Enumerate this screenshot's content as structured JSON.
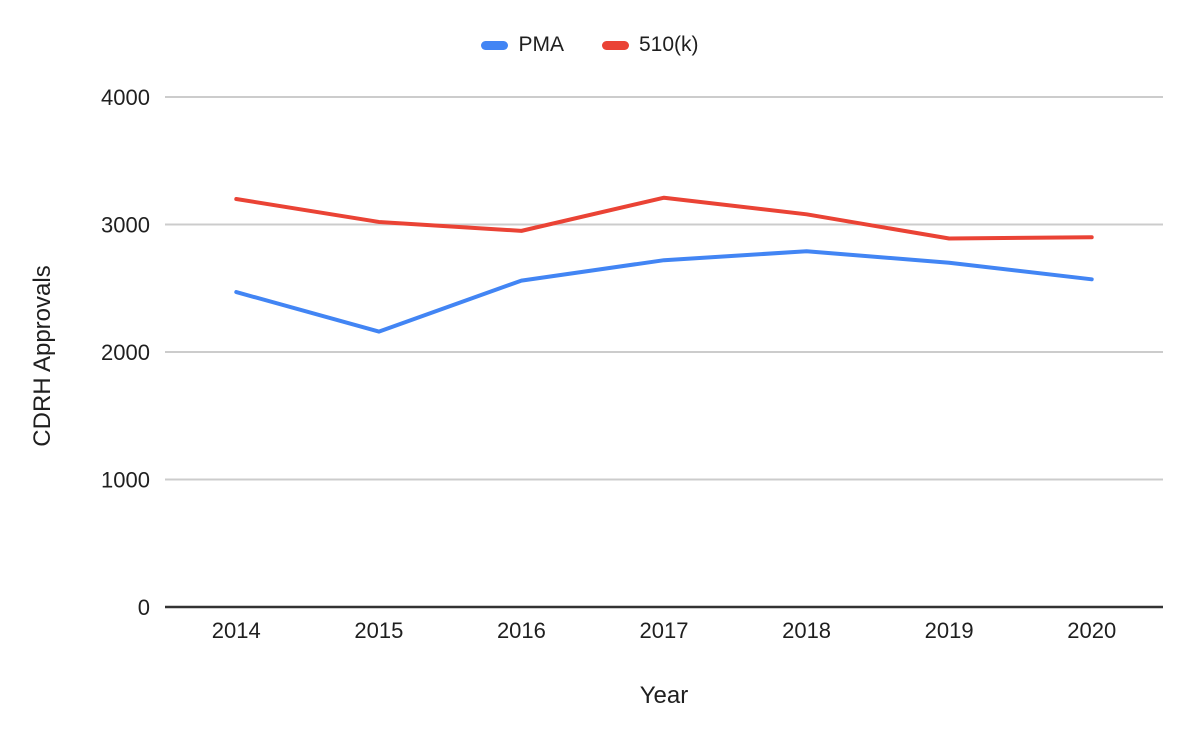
{
  "chart_data": {
    "type": "line",
    "categories": [
      "2014",
      "2015",
      "2016",
      "2017",
      "2018",
      "2019",
      "2020"
    ],
    "series": [
      {
        "name": "PMA",
        "color": "#4285F4",
        "values": [
          2470,
          2160,
          2560,
          2720,
          2790,
          2700,
          2570
        ]
      },
      {
        "name": "510(k)",
        "color": "#EA4335",
        "values": [
          3200,
          3020,
          2950,
          3210,
          3080,
          2890,
          2900
        ]
      }
    ],
    "xlabel": "Year",
    "ylabel": "CDRH Approvals",
    "ylim": [
      0,
      4000
    ],
    "yticks": [
      0,
      1000,
      2000,
      3000,
      4000
    ],
    "grid": "horizontal-only",
    "legend_position": "top-center"
  },
  "colors": {
    "background": "#ffffff",
    "gridline": "#cccccc",
    "axis_line": "#333333",
    "text": "#1f1f1f"
  }
}
